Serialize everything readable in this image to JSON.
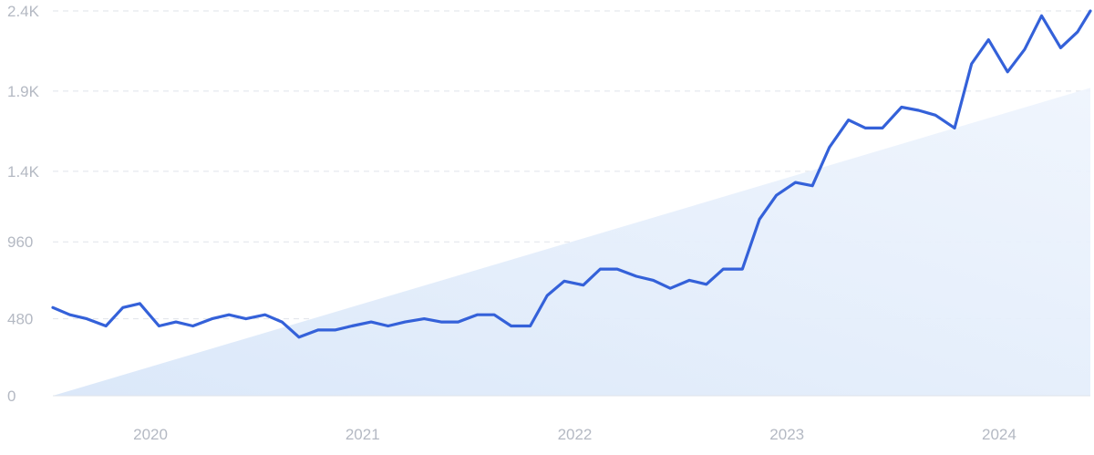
{
  "chart_data": {
    "type": "line",
    "title": "",
    "xlabel": "",
    "ylabel": "",
    "ylim": [
      0,
      2400
    ],
    "y_ticks": [
      {
        "value": 0,
        "label": "0"
      },
      {
        "value": 480,
        "label": "480"
      },
      {
        "value": 960,
        "label": "960"
      },
      {
        "value": 1400,
        "label": "1.4K"
      },
      {
        "value": 1900,
        "label": "1.9K"
      },
      {
        "value": 2400,
        "label": "2.4K"
      }
    ],
    "x_ticks": [
      {
        "value": 2020.0,
        "label": "2020"
      },
      {
        "value": 2021.0,
        "label": "2021"
      },
      {
        "value": 2022.0,
        "label": "2022"
      },
      {
        "value": 2023.0,
        "label": "2023"
      },
      {
        "value": 2024.0,
        "label": "2024"
      }
    ],
    "xlim": [
      2019.67,
      2024.56
    ],
    "grid": true,
    "line_color": "#3461d9",
    "trend_fill_color": "#dce9fa",
    "series": [
      {
        "x": [
          2019.67,
          2019.75,
          2019.83,
          2019.92,
          2020.0,
          2020.08,
          2020.17,
          2020.25,
          2020.33,
          2020.42,
          2020.5,
          2020.58,
          2020.67,
          2020.75,
          2020.83,
          2020.92,
          2021.0,
          2021.08,
          2021.17,
          2021.25,
          2021.33,
          2021.42,
          2021.5,
          2021.58,
          2021.67,
          2021.75,
          2021.83,
          2021.92,
          2022.0,
          2022.08,
          2022.17,
          2022.25,
          2022.33,
          2022.42,
          2022.5,
          2022.58,
          2022.67,
          2022.75,
          2022.83,
          2022.92,
          2023.0,
          2023.08,
          2023.17,
          2023.25,
          2023.33,
          2023.42,
          2023.5,
          2023.58,
          2023.67,
          2023.75,
          2023.83,
          2023.92,
          2024.0,
          2024.08,
          2024.17,
          2024.25,
          2024.33,
          2024.42,
          2024.5,
          2024.56
        ],
        "values": [
          550,
          505,
          480,
          435,
          550,
          575,
          435,
          460,
          435,
          480,
          505,
          480,
          505,
          460,
          365,
          410,
          410,
          435,
          460,
          435,
          460,
          480,
          460,
          460,
          505,
          505,
          435,
          435,
          625,
          715,
          690,
          790,
          790,
          745,
          720,
          670,
          720,
          695,
          790,
          790,
          1100,
          1250,
          1330,
          1310,
          1550,
          1720,
          1670,
          1670,
          1800,
          1780,
          1750,
          1670,
          2070,
          2220,
          2020,
          2160,
          2370,
          2170,
          2270,
          2400
        ]
      }
    ]
  }
}
